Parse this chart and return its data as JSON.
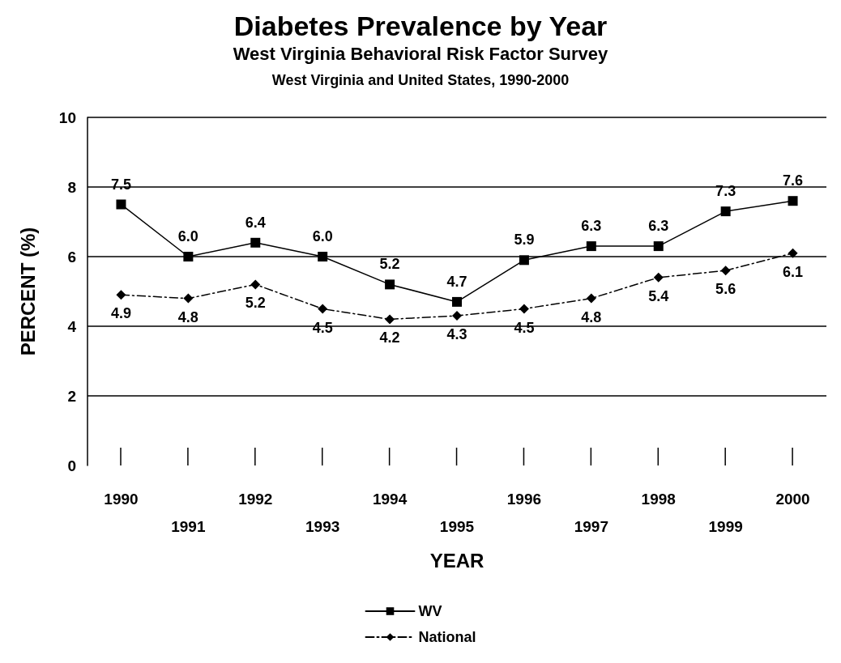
{
  "chart_data": {
    "type": "line",
    "title": "Diabetes Prevalence by Year",
    "subtitle": "West Virginia Behavioral Risk Factor Survey",
    "annotations": [
      "West Virginia and United States, 1990-2000"
    ],
    "xlabel": "YEAR",
    "ylabel": "PERCENT (%)",
    "categories": [
      "1990",
      "1991",
      "1992",
      "1993",
      "1994",
      "1995",
      "1996",
      "1997",
      "1998",
      "1999",
      "2000"
    ],
    "series": [
      {
        "name": "WV",
        "color": "#000000",
        "marker": "square",
        "line_style": "solid",
        "values": [
          7.5,
          6.0,
          6.4,
          6.0,
          5.2,
          4.7,
          5.9,
          6.3,
          6.3,
          7.3,
          7.6
        ],
        "value_labels": [
          "7.5",
          "6.0",
          "6.4",
          "6.0",
          "5.2",
          "4.7",
          "5.9",
          "6.3",
          "6.3",
          "7.3",
          "7.6"
        ]
      },
      {
        "name": "National",
        "color": "#000000",
        "marker": "diamond",
        "line_style": "dashed",
        "values": [
          4.9,
          4.8,
          5.2,
          4.5,
          4.2,
          4.3,
          4.5,
          4.8,
          5.4,
          5.6,
          6.1
        ],
        "value_labels": [
          "4.9",
          "4.8",
          "5.2",
          "4.5",
          "4.2",
          "4.3",
          "4.5",
          "4.8",
          "5.4",
          "5.6",
          "6.1"
        ]
      }
    ],
    "ylim": [
      0,
      10
    ],
    "yticks": [
      0,
      2,
      4,
      6,
      8,
      10
    ],
    "grid": "y",
    "legend": "bottom"
  }
}
